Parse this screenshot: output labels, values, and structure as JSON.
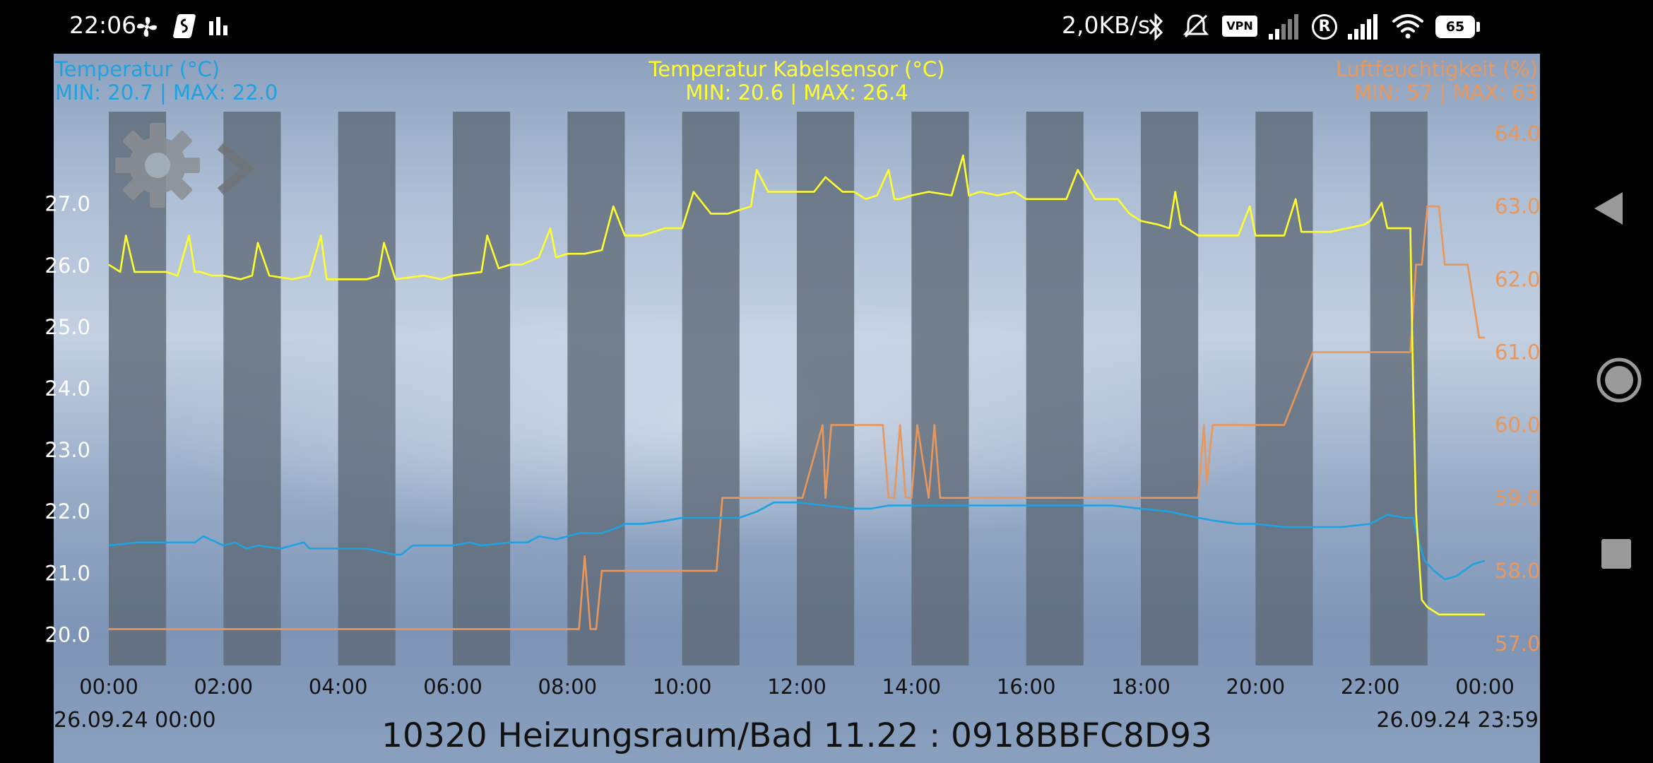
{
  "status_bar": {
    "time": "22:06",
    "net_speed": "2,0KB/s",
    "vpn_label": "VPN",
    "roaming_label": "R",
    "battery": "65",
    "icons": [
      "fan-icon",
      "shazam-icon",
      "bars-icon",
      "bluetooth-icon",
      "mute-icon",
      "vpn-icon",
      "signal-icon",
      "roaming-icon",
      "signal-icon",
      "wifi-icon",
      "battery-icon"
    ]
  },
  "header": {
    "left_title": "Temperatur (°C)",
    "left_range": "MIN: 20.7 | MAX: 22.0",
    "center_title": "Temperatur Kabelsensor (°C)",
    "center_range": "MIN: 20.6 | MAX: 26.4",
    "right_title": "Luftfeuchtigkeit (%)",
    "right_range": "MIN: 57 | MAX: 63"
  },
  "footer": {
    "start_date": "26.09.24  00:00",
    "end_date": "26.09.24  23:59",
    "title": "10320 Heizungsraum/Bad 11.22 : 0918BBFC8D93"
  },
  "toolbar": {
    "settings_icon": "gear-icon",
    "next_icon": "chevron-right-icon"
  },
  "nav": {
    "icons": [
      "back-icon",
      "home-icon",
      "recents-icon"
    ]
  },
  "colors": {
    "temperature": "#1fa2e0",
    "cable_sensor": "#ffff2e",
    "humidity": "#e9975a",
    "band": "#5c6874",
    "axis_text": "#ffffff"
  },
  "chart_data": {
    "type": "line",
    "x_unit": "hours",
    "x_range": [
      0,
      24
    ],
    "x_ticks": [
      "00:00",
      "02:00",
      "04:00",
      "06:00",
      "08:00",
      "10:00",
      "12:00",
      "14:00",
      "16:00",
      "18:00",
      "20:00",
      "22:00",
      "00:00"
    ],
    "y_left": {
      "range": [
        19.5,
        28.5
      ],
      "ticks": [
        "20.0",
        "21.0",
        "22.0",
        "23.0",
        "24.0",
        "25.0",
        "26.0",
        "27.0"
      ]
    },
    "y_right": {
      "range": [
        56.7,
        64.3
      ],
      "ticks": [
        "57.0",
        "58.0",
        "59.0",
        "60.0",
        "61.0",
        "62.0",
        "63.0",
        "64.0"
      ]
    },
    "grid": false,
    "series": [
      {
        "name": "Temperatur (°C)",
        "axis": "left",
        "color": "#1fa2e0",
        "x": [
          0,
          0.5,
          0.9,
          1.5,
          1.65,
          2.0,
          2.2,
          2.4,
          2.6,
          3.0,
          3.4,
          3.5,
          3.8,
          4.5,
          5.0,
          5.1,
          5.3,
          6.0,
          6.3,
          6.5,
          7.0,
          7.3,
          7.5,
          7.8,
          8.0,
          8.2,
          8.6,
          8.9,
          9.0,
          9.3,
          9.7,
          10.0,
          10.5,
          11.0,
          11.3,
          11.6,
          12.0,
          12.5,
          13.0,
          13.3,
          13.6,
          14.0,
          14.5,
          15.0,
          15.5,
          16.0,
          16.5,
          17.0,
          17.5,
          18.0,
          18.5,
          19.0,
          19.3,
          19.7,
          20.0,
          20.5,
          21.0,
          21.5,
          22.0,
          22.3,
          22.6,
          22.75,
          22.85,
          22.95,
          23.1,
          23.3,
          23.5,
          23.8,
          24.0
        ],
        "y": [
          21.45,
          21.5,
          21.5,
          21.5,
          21.6,
          21.45,
          21.5,
          21.4,
          21.45,
          21.4,
          21.5,
          21.4,
          21.4,
          21.4,
          21.3,
          21.3,
          21.45,
          21.45,
          21.5,
          21.45,
          21.5,
          21.5,
          21.6,
          21.55,
          21.6,
          21.65,
          21.65,
          21.75,
          21.8,
          21.8,
          21.85,
          21.9,
          21.9,
          21.9,
          22.0,
          22.15,
          22.15,
          22.1,
          22.05,
          22.05,
          22.1,
          22.1,
          22.1,
          22.1,
          22.1,
          22.1,
          22.1,
          22.1,
          22.1,
          22.05,
          22.0,
          21.9,
          21.85,
          21.8,
          21.8,
          21.75,
          21.75,
          21.75,
          21.8,
          21.95,
          21.9,
          21.9,
          21.5,
          21.2,
          21.05,
          20.9,
          20.95,
          21.15,
          21.2
        ]
      },
      {
        "name": "Temperatur Kabelsensor (°C)",
        "axis": "right",
        "color": "#ffff2e",
        "x": [
          0,
          0.2,
          0.3,
          0.45,
          0.5,
          0.7,
          1.0,
          1.2,
          1.4,
          1.5,
          1.6,
          1.8,
          2.0,
          2.3,
          2.5,
          2.6,
          2.8,
          3.2,
          3.5,
          3.7,
          3.8,
          4.0,
          4.5,
          4.7,
          4.8,
          5.0,
          5.5,
          5.8,
          6.0,
          6.5,
          6.6,
          6.8,
          7.0,
          7.2,
          7.5,
          7.7,
          7.8,
          8.0,
          8.3,
          8.6,
          8.8,
          9.0,
          9.3,
          9.7,
          10.0,
          10.2,
          10.5,
          10.8,
          11.0,
          11.2,
          11.3,
          11.5,
          12.0,
          12.3,
          12.5,
          12.8,
          13.0,
          13.2,
          13.4,
          13.6,
          13.7,
          13.8,
          14.0,
          14.3,
          14.7,
          14.9,
          15.0,
          15.2,
          15.5,
          15.8,
          16.0,
          16.3,
          16.7,
          16.9,
          17.2,
          17.4,
          17.6,
          17.8,
          18.0,
          18.3,
          18.5,
          18.6,
          18.7,
          19.0,
          19.3,
          19.5,
          19.7,
          19.9,
          20.0,
          20.3,
          20.5,
          20.7,
          20.8,
          20.9,
          21.0,
          21.3,
          21.6,
          21.9,
          22.0,
          22.2,
          22.3,
          22.5,
          22.7,
          22.75,
          22.8,
          22.9,
          23.0,
          23.2,
          23.5,
          24.0
        ],
        "y": [
          62.2,
          62.1,
          62.6,
          62.1,
          62.1,
          62.1,
          62.1,
          62.05,
          62.6,
          62.1,
          62.1,
          62.05,
          62.05,
          62.0,
          62.05,
          62.5,
          62.05,
          62.0,
          62.05,
          62.6,
          62.0,
          62.0,
          62.0,
          62.05,
          62.5,
          62.0,
          62.05,
          62.0,
          62.05,
          62.1,
          62.6,
          62.15,
          62.2,
          62.2,
          62.3,
          62.7,
          62.3,
          62.35,
          62.35,
          62.4,
          63.0,
          62.6,
          62.6,
          62.7,
          62.7,
          63.2,
          62.9,
          62.9,
          62.95,
          63.0,
          63.5,
          63.2,
          63.2,
          63.2,
          63.4,
          63.2,
          63.2,
          63.1,
          63.15,
          63.5,
          63.1,
          63.1,
          63.15,
          63.2,
          63.15,
          63.7,
          63.15,
          63.2,
          63.15,
          63.2,
          63.1,
          63.1,
          63.1,
          63.5,
          63.1,
          63.1,
          63.1,
          62.9,
          62.8,
          62.75,
          62.7,
          63.2,
          62.75,
          62.6,
          62.6,
          62.6,
          62.6,
          63.0,
          62.6,
          62.6,
          62.6,
          63.1,
          62.65,
          62.65,
          62.65,
          62.65,
          62.7,
          62.75,
          62.8,
          63.05,
          62.7,
          62.7,
          62.7,
          60.5,
          58.8,
          57.6,
          57.5,
          57.4,
          57.4,
          57.4
        ]
      },
      {
        "name": "Luftfeuchtigkeit (%)",
        "axis": "right",
        "color": "#e9975a",
        "x": [
          0,
          8.2,
          8.3,
          8.4,
          8.5,
          8.6,
          8.7,
          10.6,
          10.7,
          11.0,
          11.9,
          12.1,
          12.45,
          12.5,
          12.6,
          13.0,
          13.3,
          13.5,
          13.6,
          13.7,
          13.8,
          13.9,
          14.0,
          14.1,
          14.3,
          14.4,
          14.5,
          14.6,
          16.0,
          17.0,
          18.0,
          19.0,
          19.1,
          19.15,
          19.25,
          19.3,
          20.0,
          20.3,
          20.5,
          21.0,
          22.0,
          22.7,
          22.8,
          22.9,
          23.0,
          23.2,
          23.3,
          23.4,
          23.7,
          23.9,
          24.0
        ],
        "y": [
          57.2,
          57.2,
          58.2,
          57.2,
          57.2,
          58.0,
          58.0,
          58.0,
          59.0,
          59.0,
          59.0,
          59.0,
          60.0,
          59.0,
          60.0,
          60.0,
          60.0,
          60.0,
          59.0,
          59.0,
          60.0,
          59.0,
          59.0,
          60.0,
          59.0,
          60.0,
          59.0,
          59.0,
          59.0,
          59.0,
          59.0,
          59.0,
          60.0,
          59.2,
          60.0,
          60.0,
          60.0,
          60.0,
          60.0,
          61.0,
          61.0,
          61.0,
          62.2,
          62.2,
          63.0,
          63.0,
          62.2,
          62.2,
          62.2,
          61.2,
          61.2
        ]
      }
    ]
  }
}
